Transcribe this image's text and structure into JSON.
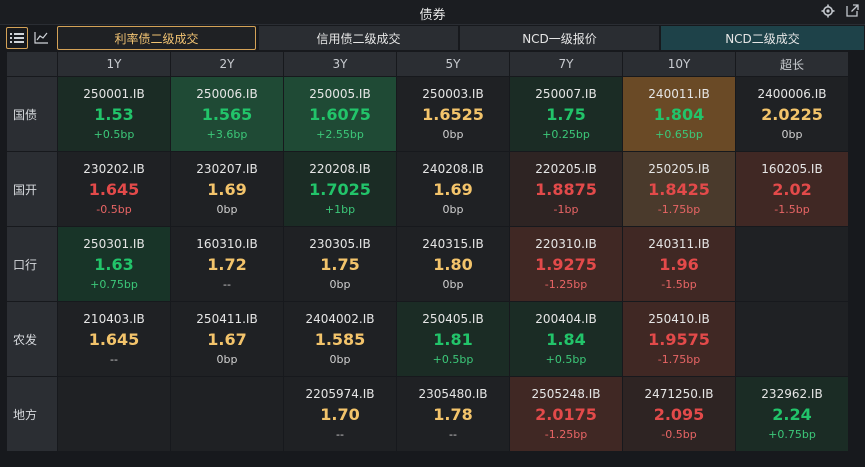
{
  "window": {
    "title": "债券"
  },
  "tabs": [
    {
      "label": "利率债二级成交",
      "active": true
    },
    {
      "label": "信用债二级成交",
      "active": false
    },
    {
      "label": "NCD一级报价",
      "active": false
    },
    {
      "label": "NCD二级成交",
      "active": false
    }
  ],
  "columns": [
    "1Y",
    "2Y",
    "3Y",
    "5Y",
    "7Y",
    "10Y",
    "超长"
  ],
  "rows": [
    {
      "label": "国债",
      "cells": [
        {
          "code": "250001.IB",
          "yield": "1.53",
          "chg": "+0.5bp",
          "dir": "down",
          "bg": "bg-g3"
        },
        {
          "code": "250006.IB",
          "yield": "1.565",
          "chg": "+3.6bp",
          "dir": "down",
          "bg": "bg-g1"
        },
        {
          "code": "250005.IB",
          "yield": "1.6075",
          "chg": "+2.55bp",
          "dir": "down",
          "bg": "bg-g1"
        },
        {
          "code": "250003.IB",
          "yield": "1.6525",
          "chg": "0bp",
          "dir": "flat",
          "bg": "bg-n"
        },
        {
          "code": "250007.IB",
          "yield": "1.75",
          "chg": "+0.25bp",
          "dir": "down",
          "bg": "bg-g3"
        },
        {
          "code": "240011.IB",
          "yield": "1.804",
          "chg": "+0.65bp",
          "dir": "down",
          "bg": "bg-o1"
        },
        {
          "code": "2400006.IB",
          "yield": "2.0225",
          "chg": "0bp",
          "dir": "flat",
          "bg": "bg-n"
        }
      ]
    },
    {
      "label": "国开",
      "cells": [
        {
          "code": "230202.IB",
          "yield": "1.645",
          "chg": "-0.5bp",
          "dir": "up",
          "bg": "bg-n"
        },
        {
          "code": "230207.IB",
          "yield": "1.69",
          "chg": "0bp",
          "dir": "flat",
          "bg": "bg-n"
        },
        {
          "code": "220208.IB",
          "yield": "1.7025",
          "chg": "+1bp",
          "dir": "down",
          "bg": "bg-g3"
        },
        {
          "code": "240208.IB",
          "yield": "1.69",
          "chg": "0bp",
          "dir": "flat",
          "bg": "bg-n"
        },
        {
          "code": "220205.IB",
          "yield": "1.8875",
          "chg": "-1bp",
          "dir": "up",
          "bg": "bg-r2"
        },
        {
          "code": "250205.IB",
          "yield": "1.8425",
          "chg": "-1.75bp",
          "dir": "up",
          "bg": "bg-o2"
        },
        {
          "code": "160205.IB",
          "yield": "2.02",
          "chg": "-1.5bp",
          "dir": "up",
          "bg": "bg-r1"
        }
      ]
    },
    {
      "label": "口行",
      "cells": [
        {
          "code": "250301.IB",
          "yield": "1.63",
          "chg": "+0.75bp",
          "dir": "down",
          "bg": "bg-g2"
        },
        {
          "code": "160310.IB",
          "yield": "1.72",
          "chg": "--",
          "dir": "flat",
          "bg": "bg-n"
        },
        {
          "code": "230305.IB",
          "yield": "1.75",
          "chg": "0bp",
          "dir": "flat",
          "bg": "bg-n"
        },
        {
          "code": "240315.IB",
          "yield": "1.80",
          "chg": "0bp",
          "dir": "flat",
          "bg": "bg-n"
        },
        {
          "code": "220310.IB",
          "yield": "1.9275",
          "chg": "-1.25bp",
          "dir": "up",
          "bg": "bg-r1"
        },
        {
          "code": "240311.IB",
          "yield": "1.96",
          "chg": "-1.5bp",
          "dir": "up",
          "bg": "bg-r1"
        },
        null
      ]
    },
    {
      "label": "农发",
      "cells": [
        {
          "code": "210403.IB",
          "yield": "1.645",
          "chg": "--",
          "dir": "flat",
          "bg": "bg-n"
        },
        {
          "code": "250411.IB",
          "yield": "1.67",
          "chg": "0bp",
          "dir": "flat",
          "bg": "bg-n"
        },
        {
          "code": "2404002.IB",
          "yield": "1.585",
          "chg": "0bp",
          "dir": "flat",
          "bg": "bg-n"
        },
        {
          "code": "250405.IB",
          "yield": "1.81",
          "chg": "+0.5bp",
          "dir": "down",
          "bg": "bg-g3"
        },
        {
          "code": "200404.IB",
          "yield": "1.84",
          "chg": "+0.5bp",
          "dir": "down",
          "bg": "bg-g3"
        },
        {
          "code": "250410.IB",
          "yield": "1.9575",
          "chg": "-1.75bp",
          "dir": "up",
          "bg": "bg-r1"
        },
        null
      ]
    },
    {
      "label": "地方",
      "cells": [
        null,
        null,
        {
          "code": "2205974.IB",
          "yield": "1.70",
          "chg": "--",
          "dir": "flat",
          "bg": "bg-n"
        },
        {
          "code": "2305480.IB",
          "yield": "1.78",
          "chg": "--",
          "dir": "flat",
          "bg": "bg-n"
        },
        {
          "code": "2505248.IB",
          "yield": "2.0175",
          "chg": "-1.25bp",
          "dir": "up",
          "bg": "bg-r1"
        },
        {
          "code": "2471250.IB",
          "yield": "2.095",
          "chg": "-0.5bp",
          "dir": "up",
          "bg": "bg-r2"
        },
        {
          "code": "232962.IB",
          "yield": "2.24",
          "chg": "+0.75bp",
          "dir": "down",
          "bg": "bg-g3"
        }
      ]
    }
  ],
  "icons": {
    "settings": "gear-icon",
    "popout": "popout-icon",
    "list_view": "list-icon",
    "chart_view": "line-chart-icon"
  },
  "colors": {
    "accent": "#d4a257",
    "up": "#e34a4a",
    "down": "#22c46a",
    "flat": "#f3c46b"
  }
}
